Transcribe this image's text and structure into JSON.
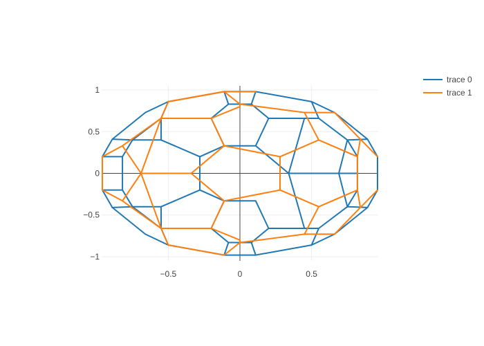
{
  "chart_data": {
    "type": "line",
    "title": "",
    "xlabel": "",
    "ylabel": "",
    "xlim": [
      -0.965,
      0.965
    ],
    "ylim": [
      -1.05,
      1.05
    ],
    "x_ticks": [
      {
        "value": -0.5,
        "label": "−0.5"
      },
      {
        "value": 0,
        "label": "0"
      },
      {
        "value": 0.5,
        "label": "0.5"
      }
    ],
    "y_ticks": [
      {
        "value": 1,
        "label": "1"
      },
      {
        "value": 0.5,
        "label": "0.5"
      },
      {
        "value": 0,
        "label": "0"
      },
      {
        "value": -0.5,
        "label": "−0.5"
      },
      {
        "value": -1,
        "label": "−1"
      }
    ],
    "grid": true,
    "zero_lines": true,
    "legend": {
      "placement": "top-right"
    },
    "series": [
      {
        "name": "trace 0",
        "color": "#1f77b4",
        "segments": [
          [
            [
              0.11,
              0.98
            ],
            [
              0.5,
              0.86
            ],
            [
              0.66,
              0.73
            ],
            [
              0.89,
              0.41
            ],
            [
              0.96,
              0.2
            ],
            [
              0.96,
              -0.2
            ],
            [
              0.89,
              -0.41
            ],
            [
              0.66,
              -0.73
            ],
            [
              0.5,
              -0.86
            ],
            [
              0.11,
              -0.98
            ],
            [
              -0.11,
              -0.98
            ],
            [
              -0.5,
              -0.86
            ],
            [
              -0.66,
              -0.73
            ],
            [
              -0.89,
              -0.41
            ],
            [
              -0.96,
              -0.2
            ],
            [
              -0.96,
              0.2
            ],
            [
              -0.89,
              0.41
            ],
            [
              -0.66,
              0.73
            ],
            [
              -0.5,
              0.86
            ],
            [
              -0.11,
              0.98
            ],
            [
              0.11,
              0.98
            ]
          ],
          [
            [
              0.11,
              0.98
            ],
            [
              0.08,
              0.83
            ]
          ],
          [
            [
              -0.11,
              0.98
            ],
            [
              -0.08,
              0.83
            ]
          ],
          [
            [
              0.08,
              0.83
            ],
            [
              -0.08,
              0.83
            ]
          ],
          [
            [
              0.08,
              0.83
            ],
            [
              0.2,
              0.66
            ],
            [
              0.45,
              0.66
            ],
            [
              0.55,
              0.66
            ]
          ],
          [
            [
              -0.08,
              0.83
            ],
            [
              -0.2,
              0.66
            ],
            [
              -0.45,
              0.66
            ],
            [
              -0.55,
              0.66
            ]
          ],
          [
            [
              0.5,
              0.86
            ],
            [
              0.55,
              0.66
            ]
          ],
          [
            [
              -0.5,
              0.86
            ],
            [
              -0.55,
              0.66
            ]
          ],
          [
            [
              0.55,
              0.66
            ],
            [
              0.75,
              0.4
            ],
            [
              0.82,
              0.2
            ],
            [
              0.82,
              -0.2
            ],
            [
              0.75,
              -0.4
            ],
            [
              0.55,
              -0.66
            ],
            [
              0.45,
              -0.66
            ],
            [
              0.2,
              -0.66
            ],
            [
              0.08,
              -0.83
            ],
            [
              -0.08,
              -0.83
            ],
            [
              -0.2,
              -0.66
            ],
            [
              -0.45,
              -0.66
            ],
            [
              -0.55,
              -0.66
            ],
            [
              -0.75,
              -0.4
            ],
            [
              -0.82,
              -0.2
            ],
            [
              -0.82,
              0.2
            ],
            [
              -0.75,
              0.4
            ],
            [
              -0.55,
              0.66
            ]
          ],
          [
            [
              0.89,
              0.41
            ],
            [
              0.75,
              0.4
            ]
          ],
          [
            [
              -0.89,
              0.41
            ],
            [
              -0.75,
              0.4
            ]
          ],
          [
            [
              0.89,
              -0.41
            ],
            [
              0.75,
              -0.4
            ]
          ],
          [
            [
              -0.89,
              -0.41
            ],
            [
              -0.75,
              -0.4
            ]
          ],
          [
            [
              0.08,
              -0.83
            ],
            [
              0.11,
              -0.98
            ]
          ],
          [
            [
              -0.08,
              -0.83
            ],
            [
              -0.11,
              -0.98
            ]
          ],
          [
            [
              0.5,
              -0.86
            ],
            [
              0.55,
              -0.66
            ]
          ],
          [
            [
              -0.5,
              -0.86
            ],
            [
              -0.55,
              -0.66
            ]
          ],
          [
            [
              0.2,
              0.66
            ],
            [
              0.11,
              0.33
            ],
            [
              -0.11,
              0.33
            ],
            [
              -0.2,
              0.66
            ]
          ],
          [
            [
              0.11,
              0.33
            ],
            [
              0.34,
              0.0
            ],
            [
              0.69,
              0.0
            ],
            [
              0.82,
              0.0
            ]
          ],
          [
            [
              -0.11,
              0.33
            ],
            [
              -0.28,
              0.2
            ],
            [
              -0.28,
              -0.2
            ],
            [
              -0.11,
              -0.33
            ],
            [
              0.11,
              -0.33
            ],
            [
              0.2,
              -0.66
            ]
          ],
          [
            [
              -0.11,
              -0.33
            ],
            [
              -0.2,
              -0.66
            ]
          ],
          [
            [
              0.34,
              0.0
            ],
            [
              0.45,
              0.66
            ]
          ],
          [
            [
              0.34,
              0.0
            ],
            [
              0.45,
              -0.66
            ]
          ],
          [
            [
              -0.28,
              0.2
            ],
            [
              -0.55,
              0.4
            ],
            [
              -0.75,
              0.4
            ]
          ],
          [
            [
              -0.28,
              -0.2
            ],
            [
              -0.55,
              -0.4
            ],
            [
              -0.75,
              -0.4
            ]
          ],
          [
            [
              -0.55,
              0.4
            ],
            [
              -0.55,
              0.66
            ]
          ],
          [
            [
              -0.55,
              -0.4
            ],
            [
              -0.55,
              -0.66
            ]
          ],
          [
            [
              0.69,
              0.0
            ],
            [
              0.75,
              0.4
            ]
          ],
          [
            [
              0.69,
              0.0
            ],
            [
              0.75,
              -0.4
            ]
          ],
          [
            [
              -0.82,
              0.2
            ],
            [
              -0.96,
              0.2
            ]
          ],
          [
            [
              -0.82,
              -0.2
            ],
            [
              -0.96,
              -0.2
            ]
          ]
        ]
      },
      {
        "name": "trace 1",
        "color": "#ff7f0e",
        "segments": [
          [
            [
              -0.11,
              0.98
            ],
            [
              0.11,
              0.98
            ]
          ],
          [
            [
              -0.5,
              0.86
            ],
            [
              -0.11,
              0.98
            ],
            [
              0.0,
              0.83
            ],
            [
              0.45,
              0.73
            ],
            [
              0.66,
              0.73
            ],
            [
              0.84,
              0.41
            ],
            [
              0.96,
              0.2
            ]
          ],
          [
            [
              -0.11,
              0.98
            ],
            [
              -0.5,
              0.86
            ],
            [
              -0.55,
              0.66
            ],
            [
              -0.82,
              0.33
            ],
            [
              -0.96,
              0.2
            ],
            [
              -0.96,
              -0.2
            ],
            [
              -0.82,
              -0.33
            ],
            [
              -0.55,
              -0.66
            ],
            [
              -0.5,
              -0.86
            ],
            [
              -0.11,
              -0.98
            ],
            [
              0.0,
              -0.83
            ],
            [
              0.45,
              -0.73
            ],
            [
              0.66,
              -0.73
            ],
            [
              0.84,
              -0.41
            ],
            [
              0.96,
              -0.2
            ]
          ],
          [
            [
              0.0,
              0.83
            ],
            [
              0.0,
              0.8
            ],
            [
              -0.2,
              0.66
            ],
            [
              -0.45,
              0.66
            ],
            [
              -0.55,
              0.66
            ]
          ],
          [
            [
              0.0,
              -0.83
            ],
            [
              0.0,
              -0.8
            ],
            [
              -0.2,
              -0.66
            ],
            [
              -0.45,
              -0.66
            ],
            [
              -0.55,
              -0.66
            ]
          ],
          [
            [
              0.45,
              0.73
            ],
            [
              0.55,
              0.4
            ],
            [
              0.82,
              0.2
            ],
            [
              0.82,
              -0.2
            ],
            [
              0.55,
              -0.4
            ],
            [
              0.45,
              -0.73
            ]
          ],
          [
            [
              0.82,
              0.2
            ],
            [
              0.84,
              0.41
            ]
          ],
          [
            [
              0.82,
              -0.2
            ],
            [
              0.84,
              -0.41
            ]
          ],
          [
            [
              -0.2,
              0.66
            ],
            [
              -0.11,
              0.33
            ],
            [
              0.28,
              0.2
            ],
            [
              0.28,
              -0.2
            ],
            [
              -0.11,
              -0.33
            ],
            [
              -0.2,
              -0.66
            ]
          ],
          [
            [
              0.28,
              0.2
            ],
            [
              0.55,
              0.4
            ]
          ],
          [
            [
              0.28,
              -0.2
            ],
            [
              0.55,
              -0.4
            ]
          ],
          [
            [
              -0.11,
              0.33
            ],
            [
              -0.34,
              0.0
            ],
            [
              -0.69,
              0.0
            ],
            [
              -0.82,
              0.33
            ]
          ],
          [
            [
              -0.34,
              0.0
            ],
            [
              -0.11,
              -0.33
            ]
          ],
          [
            [
              -0.69,
              0.0
            ],
            [
              -0.82,
              -0.33
            ]
          ],
          [
            [
              -0.55,
              0.66
            ],
            [
              -0.69,
              0.0
            ]
          ],
          [
            [
              -0.55,
              -0.66
            ],
            [
              -0.69,
              0.0
            ]
          ]
        ]
      }
    ]
  }
}
